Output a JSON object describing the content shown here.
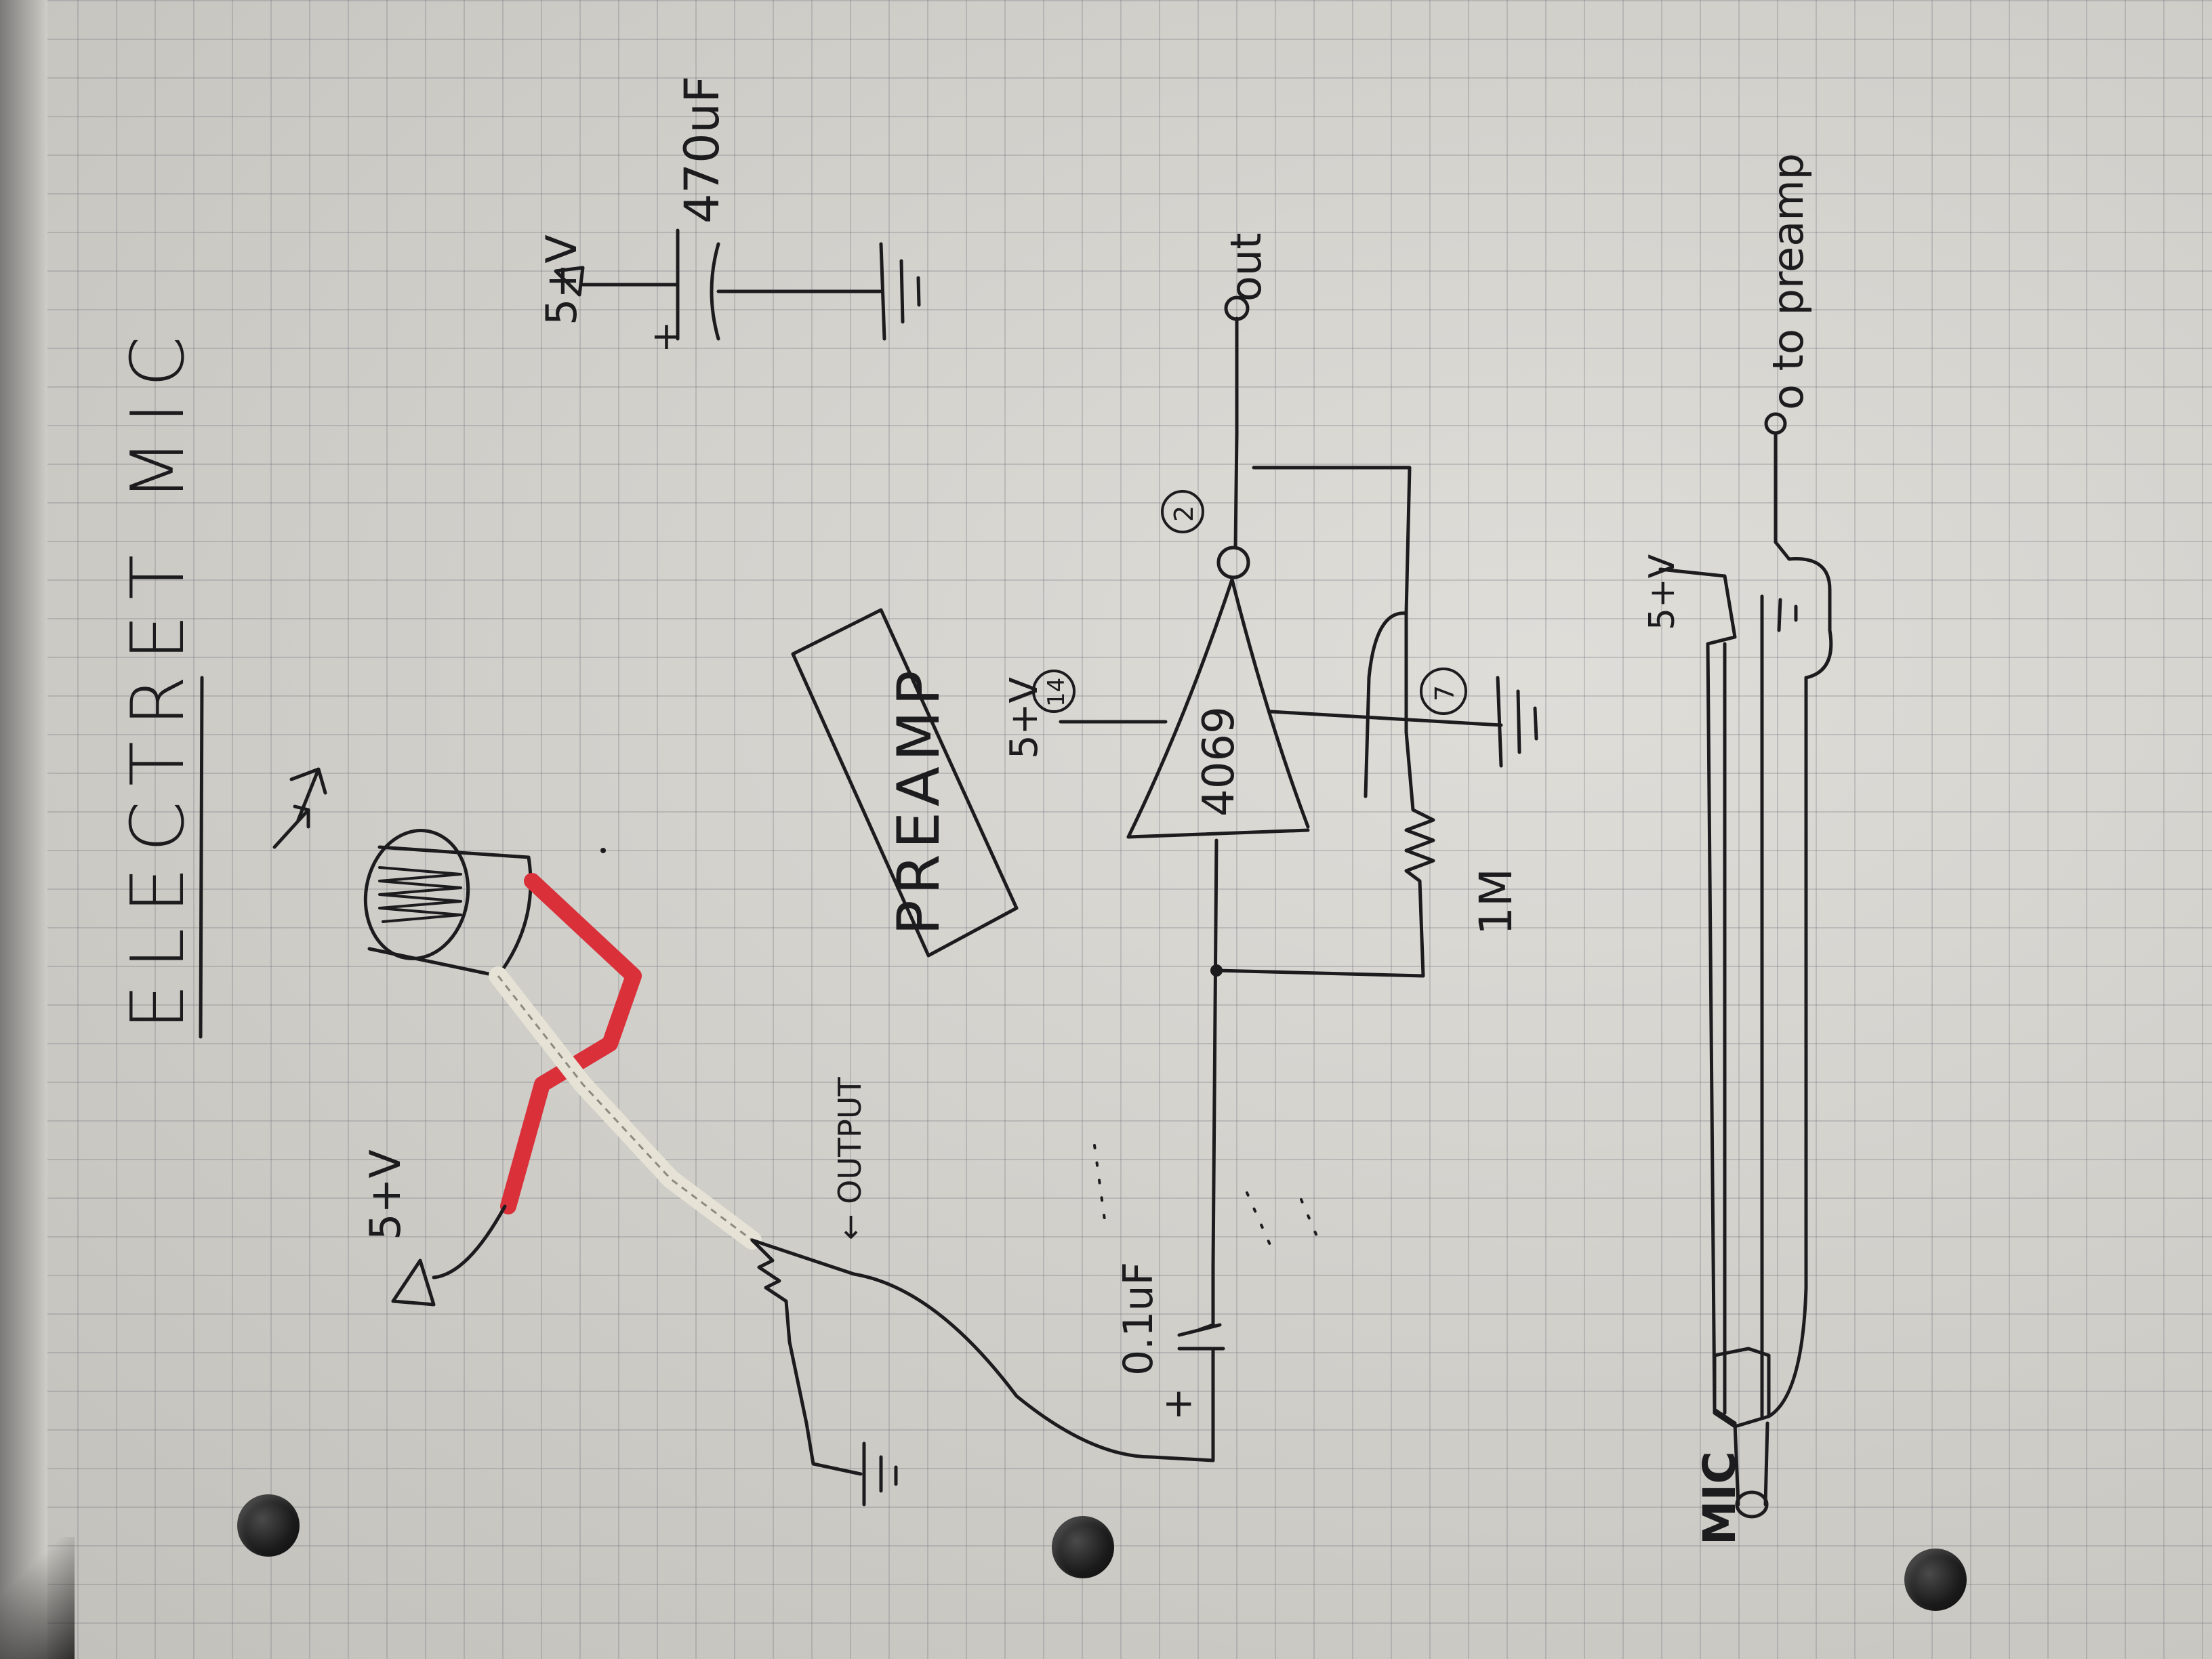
{
  "title": "ELECTRET MIC",
  "labels": {
    "mic_supply": "5+V",
    "output_note": "← OUTPUT",
    "cap_in": "0.1uF",
    "cap_plus": "+",
    "preamp_box": "PREAMP",
    "supply_top": "5+V",
    "cap_big": "470uF",
    "cap_big_plus": "+",
    "out": "out",
    "chip": "4069",
    "pin14": "14",
    "pin2": "2",
    "pin7": "7",
    "vcc_chip": "5+V",
    "resistor": "1M",
    "cable_supply": "5+V",
    "to_preamp": "o to preamp",
    "mic_end": "MIC"
  },
  "colors": {
    "ink": "#1c1c1e",
    "red_wire": "#d9303a",
    "braided_wire": "#e6e2d6"
  }
}
